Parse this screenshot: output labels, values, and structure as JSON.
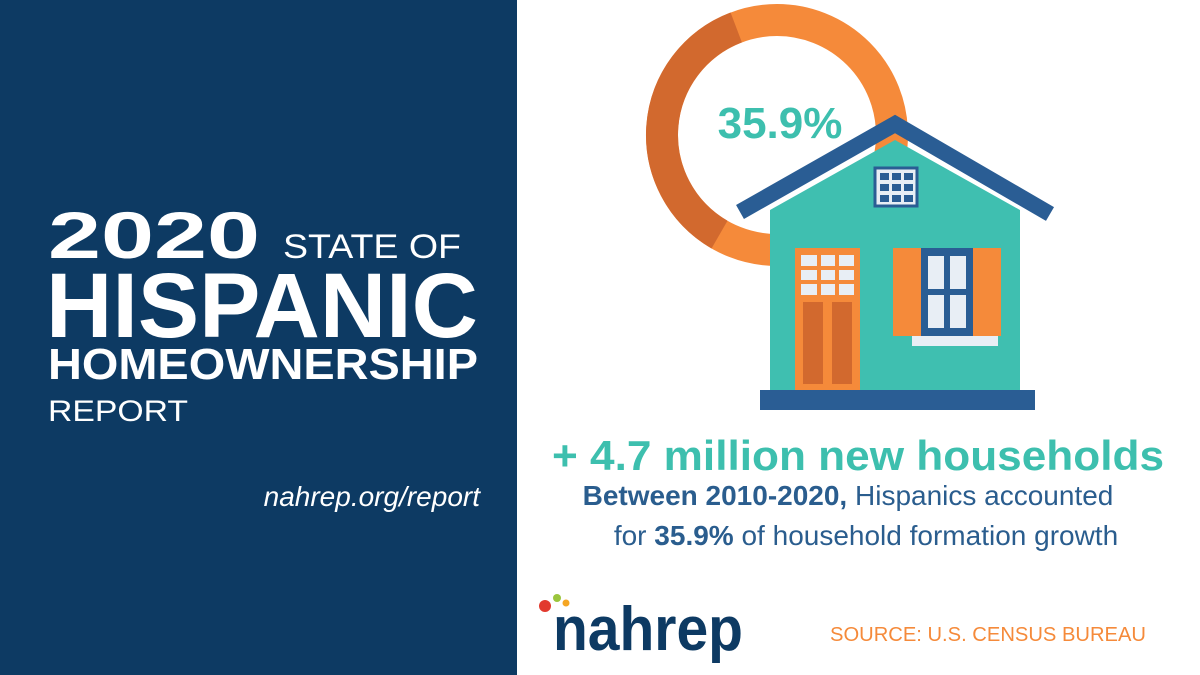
{
  "left_panel": {
    "year": "2020",
    "state_of": "STATE OF",
    "hispanic": "HISPANIC",
    "homeownership": "HOMEOWNERSHIP",
    "report": "REPORT",
    "url": "nahrep.org/report"
  },
  "donut": {
    "value": 35.9,
    "label": "35.9%"
  },
  "headline": "+ 4.7 million new households",
  "body": {
    "lead": "Between 2010-2020,",
    "line1": "Hispanics accounted",
    "prefix": "for",
    "highlight": "35.9%",
    "suffix": "of household formation growth"
  },
  "logo": "nahrep",
  "source": "SOURCE: U.S. CENSUS BUREAU"
}
